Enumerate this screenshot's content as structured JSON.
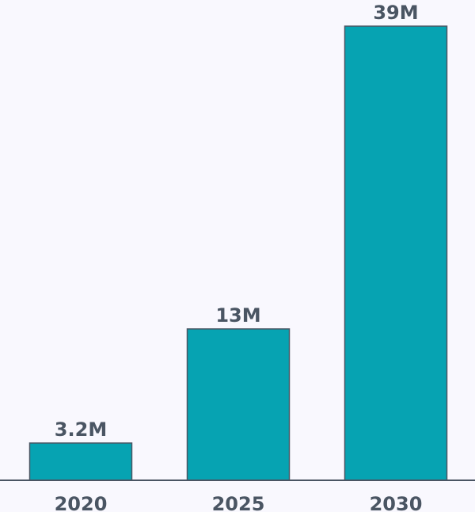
{
  "chart_data": {
    "type": "bar",
    "categories": [
      "2020",
      "2025",
      "2030"
    ],
    "values": [
      3.2,
      13,
      39
    ],
    "value_labels": [
      "3.2M",
      "13M",
      "39M"
    ],
    "title": "",
    "xlabel": "",
    "ylabel": "",
    "ylim": [
      0,
      39
    ],
    "grid": false,
    "legend": "none",
    "colors": {
      "bar": "#06a3b2",
      "outline": "#4a5563",
      "text": "#4a5563",
      "background": "#f9f8fe"
    }
  }
}
